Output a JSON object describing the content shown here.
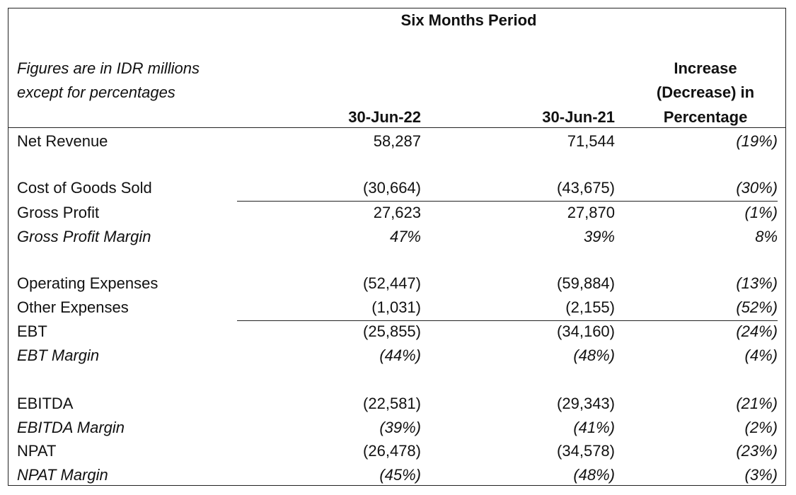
{
  "header": {
    "period_title": "Six Months Period",
    "note_line1": "Figures are in IDR millions",
    "note_line2": "except for percentages",
    "col1": "30-Jun-22",
    "col2": "30-Jun-21",
    "col3_line1": "Increase",
    "col3_line2": "(Decrease) in",
    "col3_line3": "Percentage"
  },
  "rows": [
    {
      "label": "Net Revenue",
      "v1": "58,287",
      "v2": "71,544",
      "pct": "(19%)"
    },
    {
      "label": "Cost of Goods Sold",
      "v1": "(30,664)",
      "v2": "(43,675)",
      "pct": "(30%)"
    },
    {
      "label": "Gross Profit",
      "v1": "27,623",
      "v2": "27,870",
      "pct": "(1%)"
    },
    {
      "label": "Gross Profit Margin",
      "v1": "47%",
      "v2": "39%",
      "pct": "8%"
    },
    {
      "label": "Operating Expenses",
      "v1": "(52,447)",
      "v2": "(59,884)",
      "pct": "(13%)"
    },
    {
      "label": "Other Expenses",
      "v1": "(1,031)",
      "v2": "(2,155)",
      "pct": "(52%)"
    },
    {
      "label": "EBT",
      "v1": "(25,855)",
      "v2": "(34,160)",
      "pct": "(24%)"
    },
    {
      "label": "EBT Margin",
      "v1": "(44%)",
      "v2": "(48%)",
      "pct": "(4%)"
    },
    {
      "label": "EBITDA",
      "v1": "(22,581)",
      "v2": "(29,343)",
      "pct": "(21%)"
    },
    {
      "label": "EBITDA Margin",
      "v1": "(39%)",
      "v2": "(41%)",
      "pct": "(2%)"
    },
    {
      "label": "NPAT",
      "v1": "(26,478)",
      "v2": "(34,578)",
      "pct": "(23%)"
    },
    {
      "label": "NPAT Margin",
      "v1": "(45%)",
      "v2": "(48%)",
      "pct": "(3%)"
    }
  ]
}
